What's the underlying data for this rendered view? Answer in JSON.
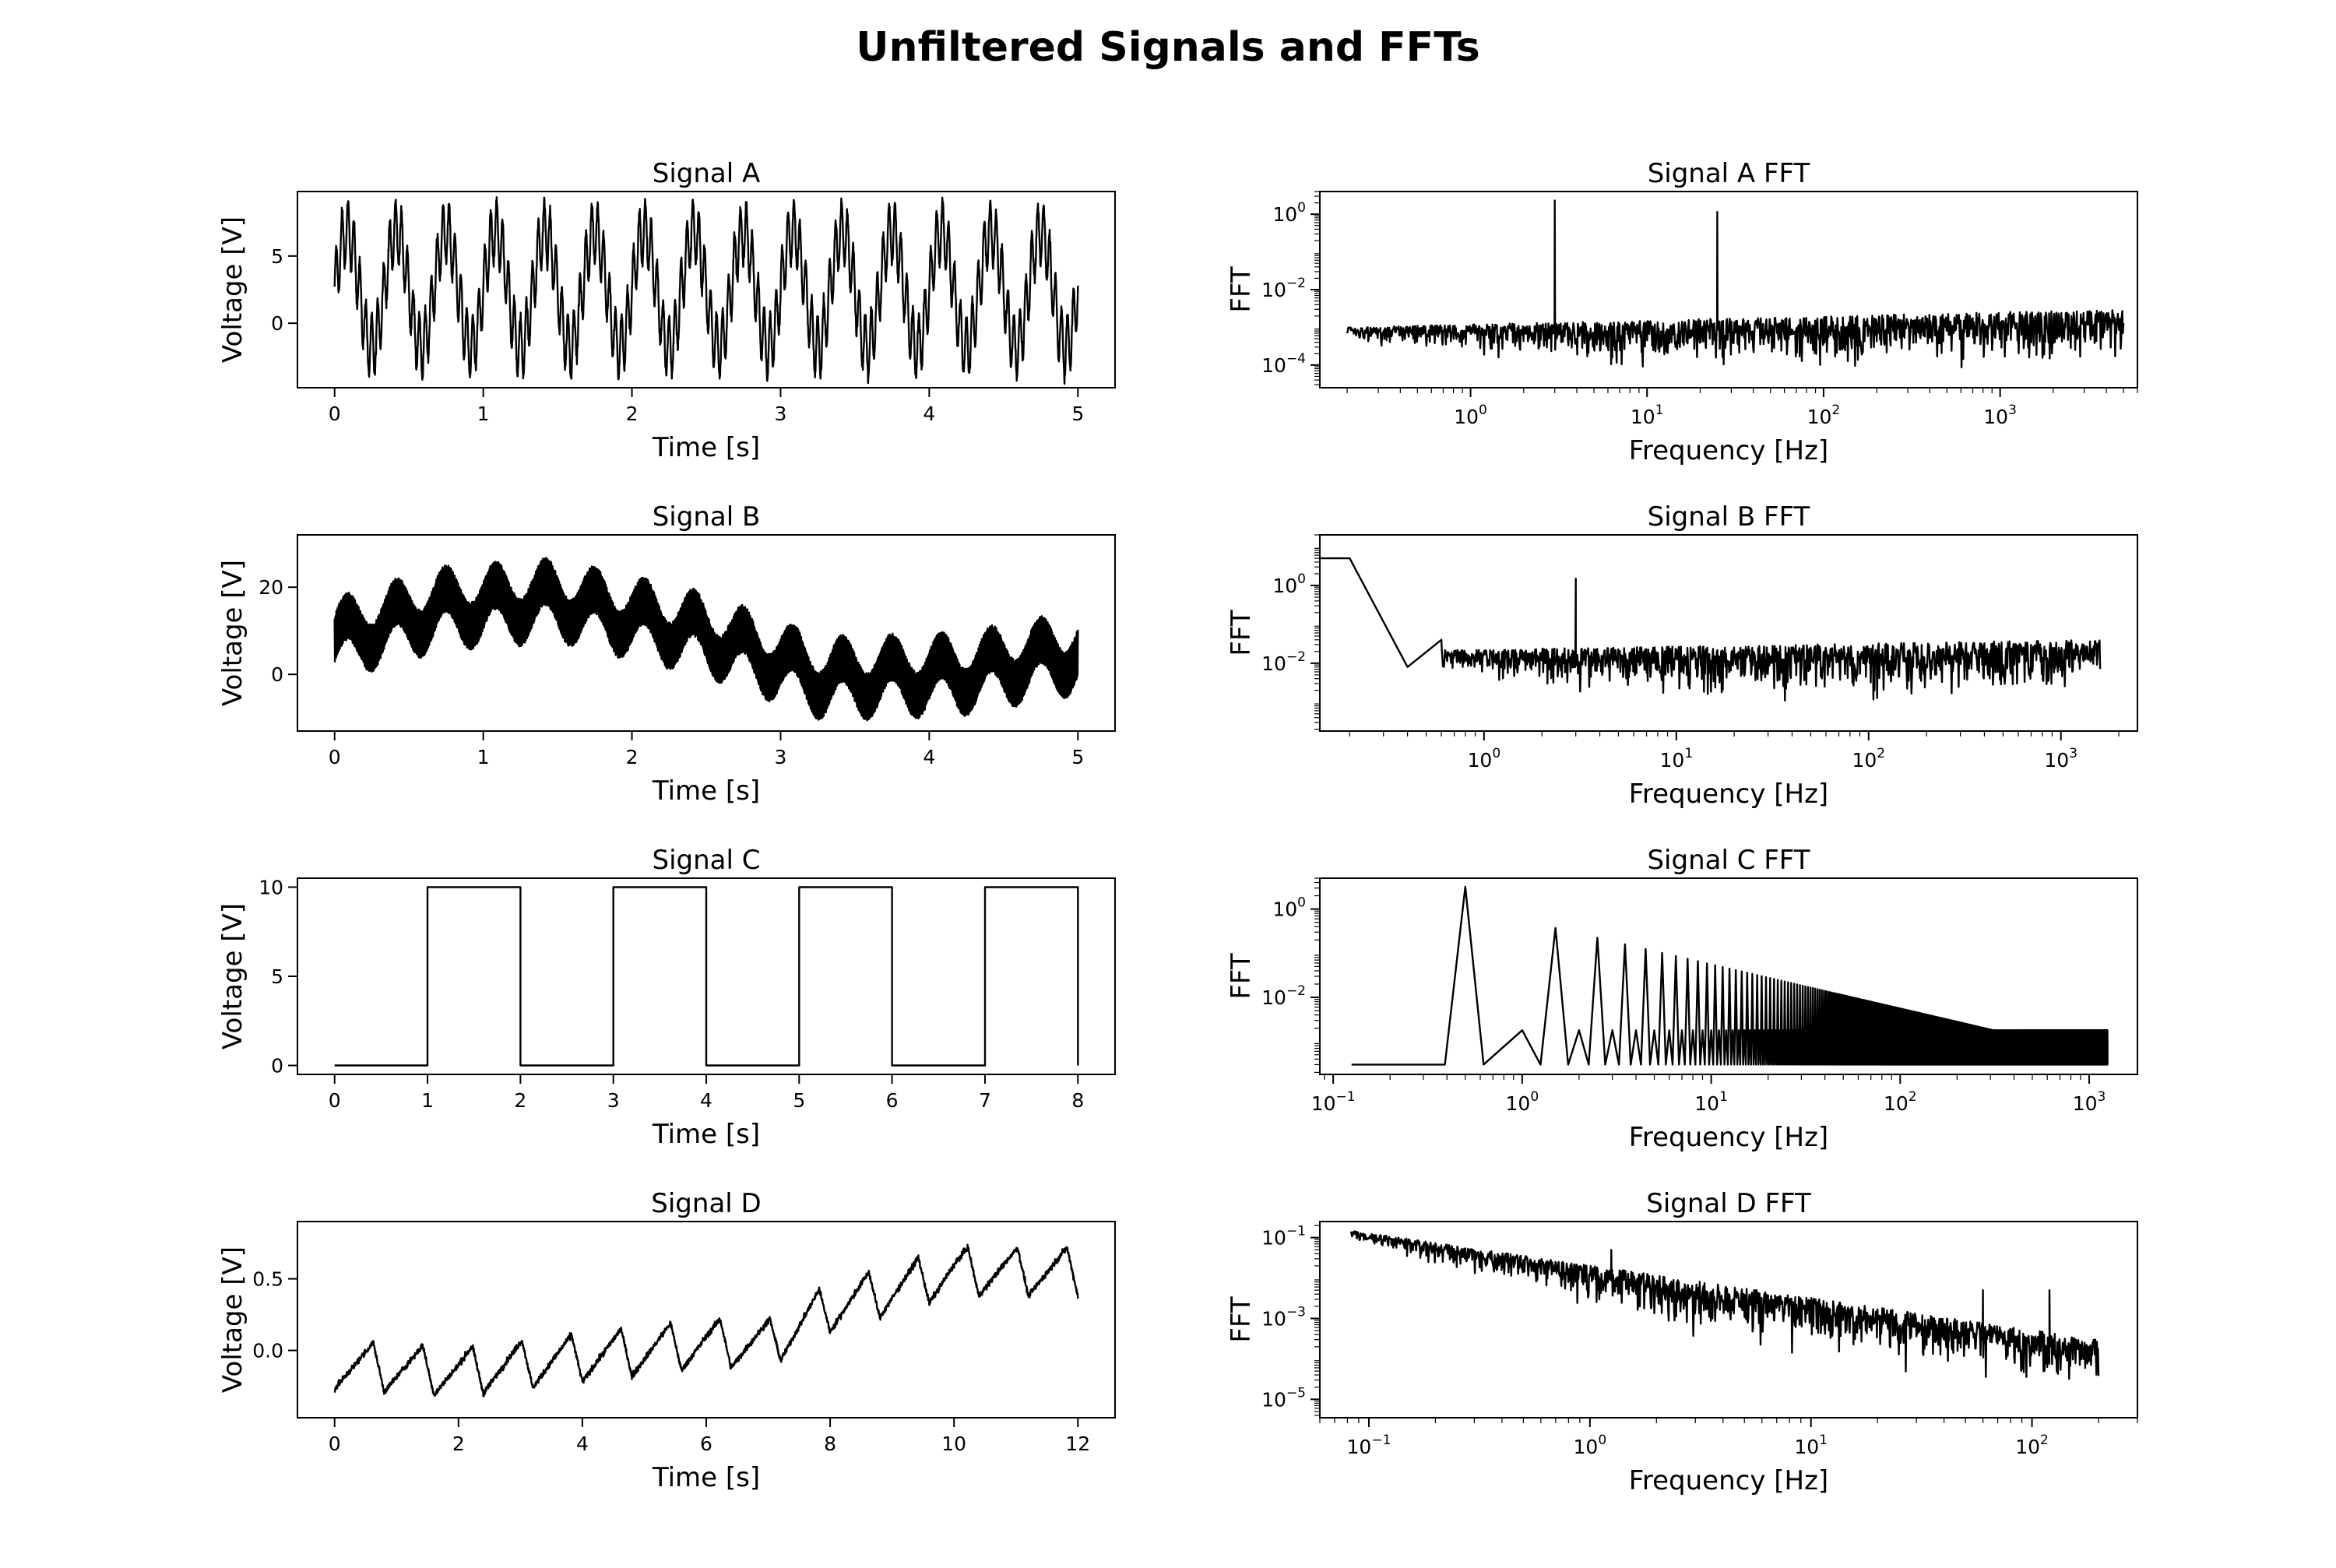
{
  "figure": {
    "title": "Unfiltered Signals and FFTs"
  },
  "chart_data": [
    {
      "id": "sigA",
      "type": "line",
      "title": "Signal A",
      "xlabel": "Time [s]",
      "ylabel": "Voltage [V]",
      "xlim": [
        -0.25,
        5.25
      ],
      "ylim": [
        -4.8,
        9.8
      ],
      "xticks": [
        0,
        1,
        2,
        3,
        4,
        5
      ],
      "yticks": [
        0,
        5
      ],
      "series": [
        {
          "model": "sines",
          "x_range": [
            0,
            5
          ],
          "offset": 2.5,
          "components": [
            {
              "amp": 4.3,
              "freq": 3
            },
            {
              "amp": 2.3,
              "freq": 25
            }
          ],
          "noise": 0.4
        }
      ]
    },
    {
      "id": "fftA",
      "type": "line",
      "title": "Signal A FFT",
      "xlabel": "Frequency [Hz]",
      "ylabel": "FFT",
      "xscale": "log",
      "yscale": "log",
      "xlim": [
        0.14,
        6000
      ],
      "ylim": [
        2.5e-05,
        4
      ],
      "xticks": [
        1,
        10,
        100,
        1000
      ],
      "yticks": [
        0.0001,
        0.01,
        1
      ],
      "series": [
        {
          "model": "spectrum",
          "x_range": [
            0.2,
            5000
          ],
          "floor_start": 0.001,
          "floor_end": 0.003,
          "peaks": [
            {
              "x": 3,
              "y": 2.3
            },
            {
              "x": 25,
              "y": 1.15
            }
          ],
          "noise_decades": 1.0
        }
      ]
    },
    {
      "id": "sigB",
      "type": "line",
      "title": "Signal B",
      "xlabel": "Time [s]",
      "ylabel": "Voltage [V]",
      "xlim": [
        -0.25,
        5.25
      ],
      "ylim": [
        -13,
        32
      ],
      "xticks": [
        0,
        1,
        2,
        3,
        4,
        5
      ],
      "yticks": [
        0,
        20
      ],
      "series": [
        {
          "model": "band",
          "x_range": [
            0,
            5
          ],
          "centre_points": [
            [
              0,
              8
            ],
            [
              0.7,
              15
            ],
            [
              1.5,
              17
            ],
            [
              2.5,
              9
            ],
            [
              3.3,
              -1
            ],
            [
              4.2,
              0
            ],
            [
              5,
              5
            ]
          ],
          "slow_amp": 4.5,
          "slow_freq": 3,
          "band_half_width": 5.5
        }
      ]
    },
    {
      "id": "fftB",
      "type": "line",
      "title": "Signal B FFT",
      "xlabel": "Frequency [Hz]",
      "ylabel": "FFT",
      "xscale": "log",
      "yscale": "log",
      "xlim": [
        0.14,
        2500
      ],
      "ylim": [
        0.00018,
        20
      ],
      "xticks": [
        1,
        10,
        100,
        1000
      ],
      "yticks": [
        0.01,
        1
      ],
      "series": [
        {
          "model": "spectrum",
          "x_range": [
            0.2,
            1600
          ],
          "floor_start": 0.02,
          "floor_end": 0.04,
          "start_points": [
            [
              0.14,
              5
            ],
            [
              0.2,
              5
            ],
            [
              0.4,
              0.008
            ],
            [
              0.6,
              0.04
            ]
          ],
          "peaks": [
            {
              "x": 3,
              "y": 1.5
            }
          ],
          "noise_decades": 1.0
        }
      ]
    },
    {
      "id": "sigC",
      "type": "line",
      "title": "Signal C",
      "xlabel": "Time [s]",
      "ylabel": "Voltage [V]",
      "xlim": [
        -0.4,
        8.4
      ],
      "ylim": [
        -0.5,
        10.5
      ],
      "xticks": [
        0,
        1,
        2,
        3,
        4,
        5,
        6,
        7,
        8
      ],
      "yticks": [
        0,
        5,
        10
      ],
      "series": [
        {
          "model": "square",
          "x_range": [
            0,
            8
          ],
          "low": 0,
          "high": 10,
          "period": 2,
          "rise": 1
        }
      ]
    },
    {
      "id": "fftC",
      "type": "line",
      "title": "Signal C FFT",
      "xlabel": "Frequency [Hz]",
      "ylabel": "FFT",
      "xscale": "log",
      "yscale": "log",
      "xlim": [
        0.085,
        1800
      ],
      "ylim": [
        0.00018,
        5
      ],
      "xticks": [
        0.1,
        1,
        10,
        100,
        1000
      ],
      "yticks": [
        0.01,
        1
      ],
      "series": [
        {
          "model": "harmonics",
          "x_range": [
            0.125,
            1250
          ],
          "floor": 0.0003,
          "fundamental": 0.5,
          "fundamental_amp": 3.2,
          "spacing": 0.5
        }
      ]
    },
    {
      "id": "sigD",
      "type": "line",
      "title": "Signal D",
      "xlabel": "Time [s]",
      "ylabel": "Voltage [V]",
      "xlim": [
        -0.6,
        12.6
      ],
      "ylim": [
        -0.47,
        0.9
      ],
      "xticks": [
        0,
        2,
        4,
        6,
        8,
        10,
        12
      ],
      "yticks": [
        0,
        0.5
      ],
      "series": [
        {
          "model": "sawtooth",
          "x_range": [
            0,
            12
          ],
          "period": 0.8,
          "amp": 0.17,
          "baseline_points": [
            [
              0,
              -0.1
            ],
            [
              2,
              -0.15
            ],
            [
              4,
              -0.05
            ],
            [
              6,
              0.05
            ],
            [
              7,
              0.05
            ],
            [
              8,
              0.3
            ],
            [
              10,
              0.55
            ],
            [
              12,
              0.55
            ]
          ],
          "noise": 0.02
        }
      ]
    },
    {
      "id": "fftD",
      "type": "line",
      "title": "Signal D FFT",
      "xlabel": "Frequency [Hz]",
      "ylabel": "FFT",
      "xscale": "log",
      "yscale": "log",
      "xlim": [
        0.06,
        300
      ],
      "ylim": [
        3.5e-06,
        0.25
      ],
      "xticks": [
        0.1,
        1,
        10,
        100
      ],
      "yticks": [
        1e-05,
        0.001,
        0.1
      ],
      "series": [
        {
          "model": "spectrum",
          "x_range": [
            0.083,
            200
          ],
          "floor_start": 0.15,
          "floor_end": 0.0003,
          "peaks": [
            {
              "x": 1.25,
              "y": 0.05
            },
            {
              "x": 60,
              "y": 0.005
            },
            {
              "x": 120,
              "y": 0.005
            }
          ],
          "noise_decades": 0.9
        }
      ]
    }
  ]
}
